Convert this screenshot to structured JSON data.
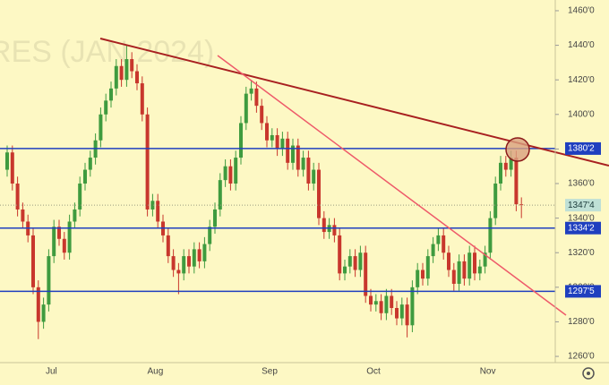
{
  "chart_data": {
    "type": "candlestick",
    "watermark": "RES (JAN 2024)",
    "categories": [
      null,
      null,
      null,
      null,
      null,
      null,
      null,
      null,
      "Jul",
      null,
      null,
      null,
      null,
      null,
      null,
      null,
      null,
      null,
      null,
      null,
      null,
      null,
      null,
      null,
      null,
      null,
      null,
      null,
      "Aug",
      null,
      null,
      null,
      null,
      null,
      null,
      null,
      null,
      null,
      null,
      null,
      null,
      null,
      null,
      null,
      null,
      null,
      null,
      null,
      null,
      null,
      "Sep",
      null,
      null,
      null,
      null,
      null,
      null,
      null,
      null,
      null,
      null,
      null,
      null,
      null,
      null,
      null,
      null,
      null,
      null,
      null,
      "Oct",
      null,
      null,
      null,
      null,
      null,
      null,
      null,
      null,
      null,
      null,
      null,
      null,
      null,
      null,
      null,
      null,
      null,
      null,
      null,
      null,
      null,
      "Nov",
      null,
      null,
      null,
      null,
      null,
      null,
      null
    ],
    "open": [
      1368,
      1378,
      1360,
      1345,
      1338,
      1330,
      1300,
      1280,
      1290,
      1318,
      1335,
      1328,
      1320,
      1338,
      1345,
      1360,
      1368,
      1375,
      1385,
      1400,
      1408,
      1415,
      1428,
      1420,
      1432,
      1425,
      1418,
      1400,
      1345,
      1350,
      1338,
      1330,
      1318,
      1310,
      1308,
      1318,
      1312,
      1322,
      1315,
      1325,
      1335,
      1345,
      1362,
      1370,
      1360,
      1375,
      1395,
      1412,
      1415,
      1405,
      1395,
      1385,
      1388,
      1380,
      1386,
      1372,
      1382,
      1368,
      1375,
      1360,
      1368,
      1340,
      1332,
      1336,
      1330,
      1308,
      1312,
      1318,
      1310,
      1320,
      1295,
      1290,
      1292,
      1285,
      1295,
      1288,
      1282,
      1290,
      1278,
      1300,
      1310,
      1305,
      1318,
      1325,
      1330,
      1320,
      1310,
      1302,
      1315,
      1305,
      1320,
      1308,
      1312,
      1320,
      1340,
      1360,
      1372,
      1368,
      1375,
      1348
    ],
    "high": [
      1382,
      1382,
      1364,
      1349,
      1342,
      1334,
      1304,
      1294,
      1322,
      1339,
      1339,
      1332,
      1342,
      1349,
      1364,
      1372,
      1379,
      1389,
      1404,
      1412,
      1419,
      1432,
      1432,
      1440,
      1436,
      1429,
      1422,
      1404,
      1354,
      1354,
      1342,
      1334,
      1322,
      1314,
      1322,
      1322,
      1326,
      1326,
      1329,
      1339,
      1349,
      1366,
      1374,
      1374,
      1379,
      1399,
      1416,
      1420,
      1419,
      1409,
      1399,
      1392,
      1392,
      1390,
      1390,
      1386,
      1386,
      1379,
      1379,
      1372,
      1372,
      1344,
      1340,
      1340,
      1334,
      1316,
      1322,
      1322,
      1324,
      1324,
      1299,
      1296,
      1296,
      1299,
      1299,
      1292,
      1294,
      1294,
      1304,
      1314,
      1314,
      1322,
      1329,
      1334,
      1334,
      1324,
      1314,
      1319,
      1319,
      1324,
      1324,
      1316,
      1324,
      1344,
      1364,
      1376,
      1376,
      1379,
      1379,
      1352
    ],
    "low": [
      1364,
      1356,
      1341,
      1334,
      1326,
      1296,
      1270,
      1276,
      1286,
      1314,
      1324,
      1316,
      1316,
      1334,
      1341,
      1356,
      1364,
      1371,
      1381,
      1396,
      1404,
      1411,
      1416,
      1416,
      1421,
      1414,
      1396,
      1341,
      1341,
      1334,
      1326,
      1314,
      1306,
      1296,
      1304,
      1308,
      1308,
      1311,
      1311,
      1321,
      1331,
      1341,
      1358,
      1356,
      1356,
      1371,
      1391,
      1408,
      1401,
      1391,
      1381,
      1381,
      1376,
      1376,
      1368,
      1368,
      1364,
      1364,
      1356,
      1356,
      1336,
      1328,
      1328,
      1326,
      1304,
      1304,
      1308,
      1306,
      1306,
      1291,
      1286,
      1286,
      1281,
      1281,
      1284,
      1278,
      1278,
      1271,
      1274,
      1296,
      1301,
      1301,
      1314,
      1321,
      1316,
      1306,
      1298,
      1298,
      1301,
      1301,
      1304,
      1304,
      1308,
      1316,
      1336,
      1356,
      1364,
      1364,
      1344,
      1340
    ],
    "close": [
      1378,
      1360,
      1345,
      1338,
      1330,
      1300,
      1280,
      1290,
      1318,
      1335,
      1328,
      1320,
      1338,
      1345,
      1360,
      1368,
      1375,
      1385,
      1400,
      1408,
      1415,
      1428,
      1420,
      1432,
      1425,
      1418,
      1400,
      1345,
      1350,
      1338,
      1330,
      1318,
      1310,
      1308,
      1318,
      1312,
      1322,
      1315,
      1325,
      1335,
      1345,
      1362,
      1370,
      1360,
      1375,
      1395,
      1412,
      1415,
      1405,
      1395,
      1385,
      1388,
      1380,
      1386,
      1372,
      1382,
      1368,
      1375,
      1360,
      1368,
      1340,
      1332,
      1336,
      1330,
      1308,
      1312,
      1318,
      1310,
      1320,
      1295,
      1290,
      1292,
      1285,
      1295,
      1288,
      1282,
      1290,
      1278,
      1300,
      1310,
      1305,
      1318,
      1325,
      1330,
      1320,
      1310,
      1302,
      1315,
      1305,
      1320,
      1308,
      1312,
      1320,
      1340,
      1360,
      1372,
      1368,
      1375,
      1348,
      1347.5
    ],
    "up_color": "#3f9b3f",
    "down_color": "#c8372d",
    "levels": [
      {
        "value": 1380.25,
        "label": "1380'2"
      },
      {
        "value": 1334.25,
        "label": "1334'2"
      },
      {
        "value": 1297.625,
        "label": "1297'5"
      }
    ],
    "level_color": "#1f3fbf",
    "last_price": {
      "value": 1347.5,
      "label": "1347'4"
    },
    "ylim": [
      1256.4,
      1466.2
    ],
    "yticks": [
      {
        "value": 1260,
        "label": "1260'0"
      },
      {
        "value": 1280,
        "label": "1280'0"
      },
      {
        "value": 1300,
        "label": "1300'0"
      },
      {
        "value": 1320,
        "label": "1320'0"
      },
      {
        "value": 1340,
        "label": "1340'0"
      },
      {
        "value": 1360,
        "label": "1360'0"
      },
      {
        "value": 1380,
        "label": "1380'0"
      },
      {
        "value": 1400,
        "label": "1400'0"
      },
      {
        "value": 1420,
        "label": "1420'0"
      },
      {
        "value": 1440,
        "label": "1440'0"
      },
      {
        "value": 1460,
        "label": "1460'0"
      }
    ]
  }
}
